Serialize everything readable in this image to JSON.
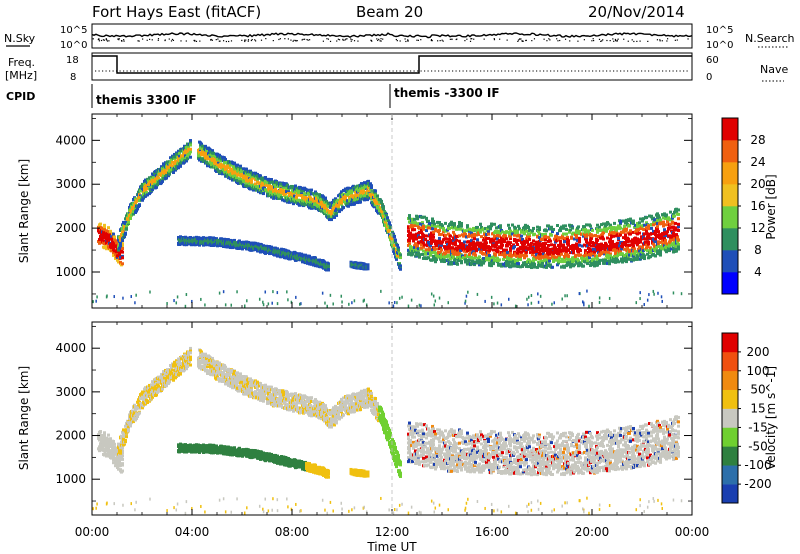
{
  "header": {
    "station": "Fort Hays East (fitACF)",
    "beam": "Beam 20",
    "date": "20/Nov/2014"
  },
  "top_panels": {
    "nsky_label": "N.Sky",
    "nsky_ticks": [
      "10^5",
      "10^0"
    ],
    "nsearch_label": "N.Search",
    "nsearch_ticks": [
      "10^5",
      "10^0"
    ],
    "freq_label_1": "Freq.",
    "freq_label_2": "[MHz]",
    "freq_ticks": [
      "18",
      "8"
    ],
    "nave_label": "Nave",
    "nave_ticks": [
      "60",
      "0"
    ],
    "cpid_label": "CPID",
    "cpid_segments": [
      {
        "label": "themis 3300 IF",
        "start_hour": 0
      },
      {
        "label": "themis -3300 IF",
        "start_hour": 12
      }
    ]
  },
  "chart_data": [
    {
      "type": "heatmap",
      "name": "power",
      "ylabel": "Slant Range [km]",
      "yticks": [
        "4000",
        "3000",
        "2000",
        "1000"
      ],
      "ylim": [
        180,
        4600
      ],
      "colorbar_label": "Power [dB]",
      "colorbar_ticks": [
        "28",
        "24",
        "20",
        "16",
        "12",
        "8",
        "4"
      ],
      "colors": [
        "#0000ff",
        "#1f4fb8",
        "#2f8f5f",
        "#6fcf3f",
        "#f0c020",
        "#f7a010",
        "#f06010",
        "#e00000"
      ]
    },
    {
      "type": "heatmap",
      "name": "velocity",
      "ylabel": "Slant Range [km]",
      "yticks": [
        "4000",
        "3000",
        "2000",
        "1000"
      ],
      "ylim": [
        180,
        4600
      ],
      "colorbar_label": "Velocity [m s^-1]",
      "colorbar_ticks": [
        "200",
        "100",
        "50",
        "15",
        "-15",
        "-50",
        "-100",
        "-200"
      ],
      "colors": [
        "#1a3fb0",
        "#2c6faa",
        "#2f8040",
        "#6fd030",
        "#c8c8c0",
        "#f0c010",
        "#f08a10",
        "#f05010",
        "#e00000"
      ]
    }
  ],
  "xaxis": {
    "label": "Time UT",
    "ticks": [
      "00:00",
      "04:00",
      "08:00",
      "12:00",
      "16:00",
      "20:00",
      "00:00"
    ]
  }
}
